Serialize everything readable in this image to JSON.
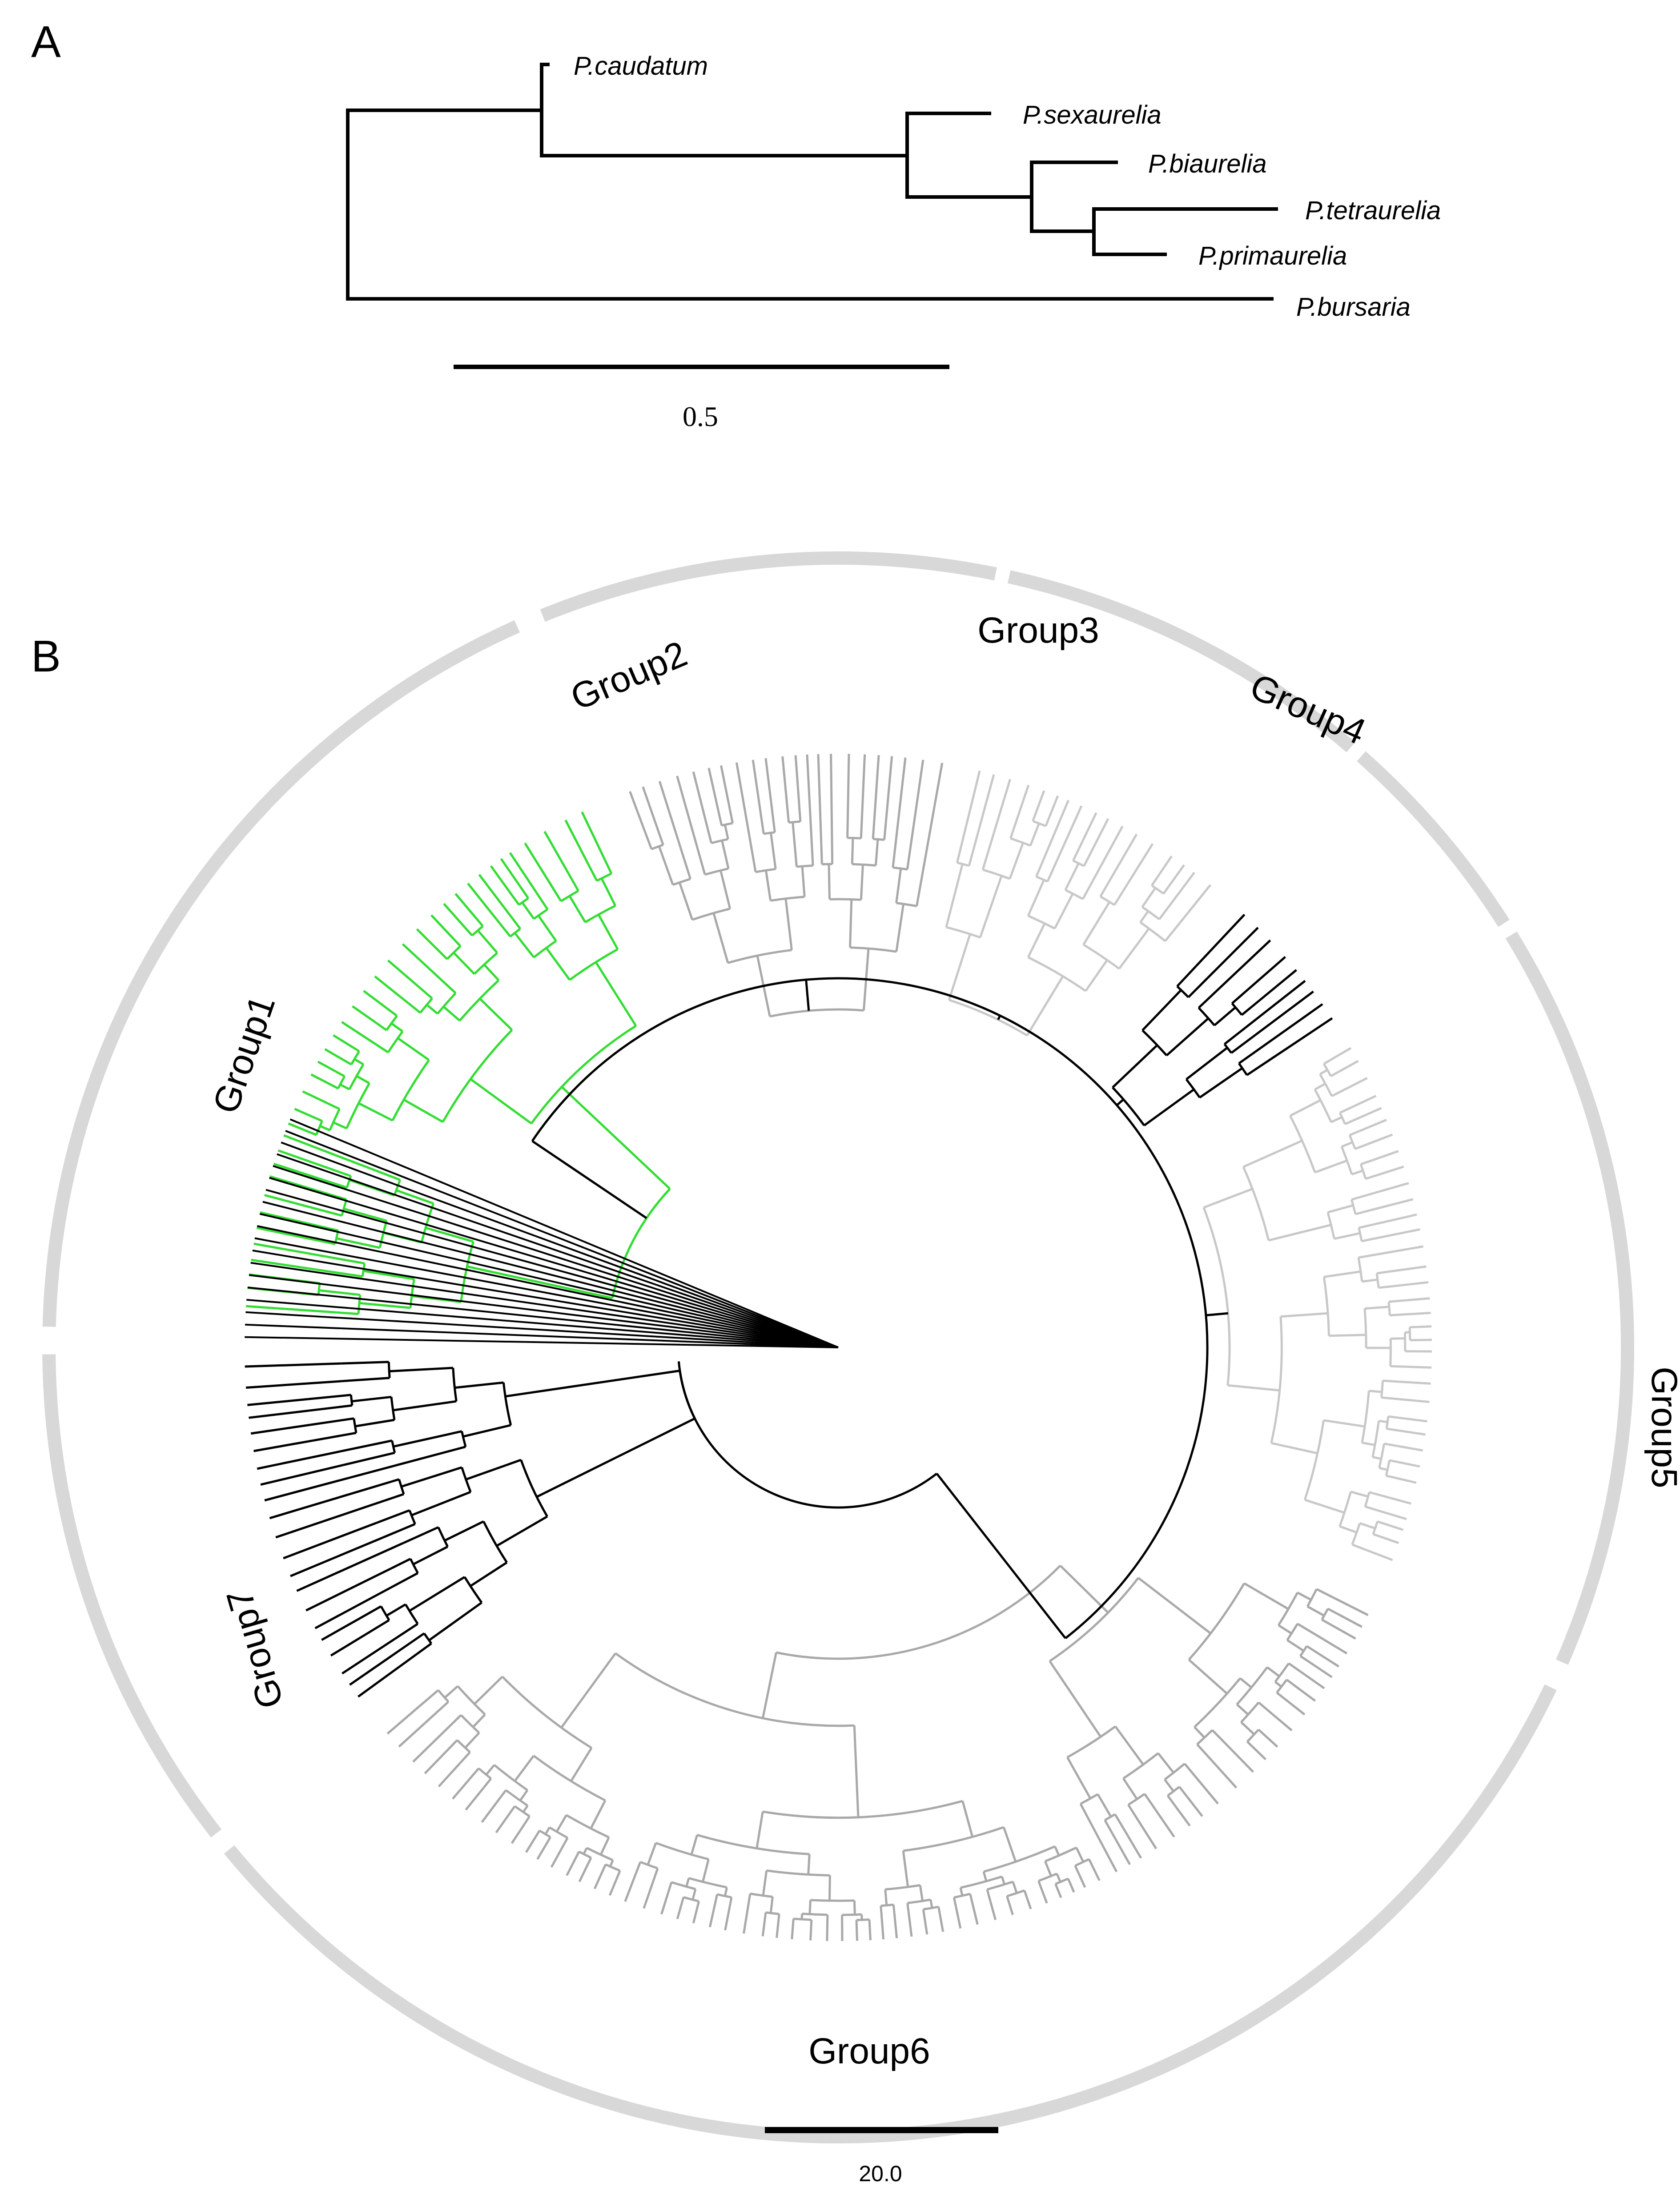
{
  "panel_a": {
    "label": "A",
    "taxa": [
      "P.caudatum",
      "P.sexaurelia",
      "P.biaurelia",
      "P.tetraurelia",
      "P.primaurelia",
      "P.bursaria"
    ],
    "scale_bar_label": "0.5"
  },
  "panel_b": {
    "label": "B",
    "groups": [
      "Group1",
      "Group2",
      "Group3",
      "Group4",
      "Group5",
      "Group6",
      "Group7"
    ],
    "scale_bar_label": "20.0"
  },
  "colors": {
    "tree_black": "#000000",
    "group1_green": "#33dd33",
    "grey_clade": "#a9a9a9",
    "light_grey_clade": "#c8c8c8",
    "ring_grey": "#d8d8d8"
  }
}
